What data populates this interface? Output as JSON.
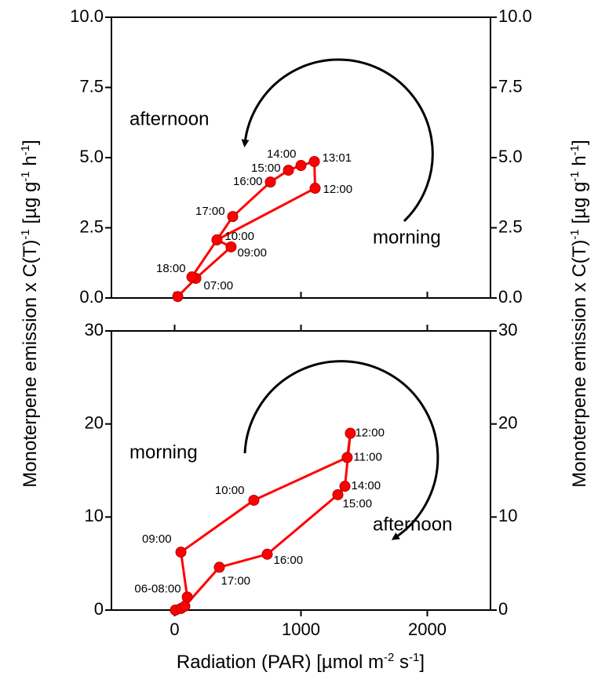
{
  "chart_data": [
    {
      "type": "line",
      "color": "#ff0000",
      "ylabel": [
        "Monoterpene emission x C(T)",
        "-1",
        " [µg g",
        "-1",
        " h",
        "-1",
        "]"
      ],
      "x": [
        25,
        168,
        447,
        335,
        1112,
        1106,
        1000,
        901,
        758,
        460,
        137
      ],
      "values": [
        0.05,
        0.7,
        1.82,
        2.07,
        3.91,
        4.86,
        4.72,
        4.55,
        4.13,
        2.9,
        0.75
      ],
      "point_labels": [
        null,
        "07:00",
        "09:00",
        "10:00",
        "12:00",
        "13:01",
        "14:00",
        "15:00",
        "16:00",
        "17:00",
        "18:00"
      ],
      "annotations": [
        "afternoon",
        "morning"
      ],
      "xlim": [
        -500,
        2500
      ],
      "xticks": [
        0,
        1000,
        2000
      ],
      "ylim": [
        0,
        10
      ],
      "yticks": [
        {
          "value": 0,
          "label": "0.0"
        },
        2.5,
        {
          "value": 5,
          "label": "5.0"
        },
        7.5,
        {
          "value": 10,
          "label": "10.0"
        }
      ]
    },
    {
      "type": "line",
      "color": "#ff0000",
      "xlabel": [
        "Radiation (PAR) [µmol m",
        "-2",
        " s",
        "-1",
        "]"
      ],
      "x": [
        6,
        50,
        100,
        50,
        627,
        1366,
        1391,
        1348,
        1292,
        733,
        354,
        81
      ],
      "values": [
        0,
        0.17,
        1.4,
        6.23,
        11.8,
        16.4,
        19.0,
        13.3,
        12.4,
        6.0,
        4.6,
        0.42
      ],
      "point_labels": [
        null,
        null,
        "06-08:00",
        "09:00",
        "10:00",
        "11:00",
        "12:00",
        "14:00",
        "15:00",
        "16:00",
        "17:00",
        null
      ],
      "annotations": [
        "morning",
        "afternoon"
      ],
      "xlim": [
        -500,
        2500
      ],
      "xticks": [
        0,
        1000,
        2000
      ],
      "ylim": [
        0,
        30
      ],
      "yticks": [
        0,
        10,
        20,
        30
      ]
    }
  ]
}
